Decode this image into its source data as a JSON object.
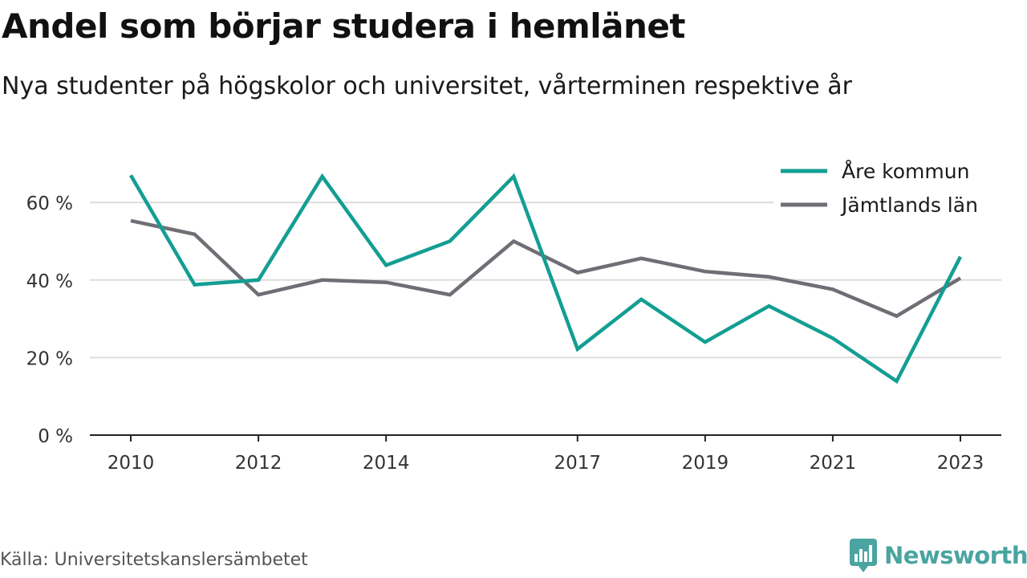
{
  "header": {
    "title": "Andel som börjar studera i hemlänet",
    "subtitle": "Nya studenter på högskolor och universitet, vårterminen respektive år"
  },
  "footer": {
    "source": "Källa: Universitetskanslersämbetet",
    "brand": "Newsworthy",
    "brand_icon": "bar-chart-icon"
  },
  "colors": {
    "are": "#139e93",
    "jamtland": "#6f6e75",
    "grid": "#dcdcdc",
    "axis": "#222222",
    "brand": "#4aa4a0"
  },
  "chart_data": {
    "type": "line",
    "x": [
      2010,
      2011,
      2012,
      2013,
      2014,
      2015,
      2016,
      2017,
      2018,
      2019,
      2020,
      2021,
      2022,
      2023
    ],
    "x_tick_labels": [
      "2010",
      "2012",
      "2014",
      "2017",
      "2019",
      "2021",
      "2023"
    ],
    "y_tick_labels": [
      "0 %",
      "20 %",
      "40 %",
      "60 %"
    ],
    "y_ticks": [
      0,
      20,
      40,
      60
    ],
    "ylim": [
      0,
      70
    ],
    "grid": true,
    "legend_position": "top-right",
    "series": [
      {
        "name": "Åre kommun",
        "color": "#139e93",
        "values": [
          67,
          38.8,
          40,
          66.7,
          43.8,
          50,
          66.7,
          22.2,
          35,
          24,
          33.3,
          25,
          13.9,
          46
        ]
      },
      {
        "name": "Jämtlands län",
        "color": "#6f6e75",
        "values": [
          55.3,
          51.8,
          36.2,
          40,
          39.4,
          36.2,
          50,
          41.9,
          45.6,
          42.2,
          40.8,
          37.6,
          30.7,
          40.5
        ]
      }
    ]
  }
}
